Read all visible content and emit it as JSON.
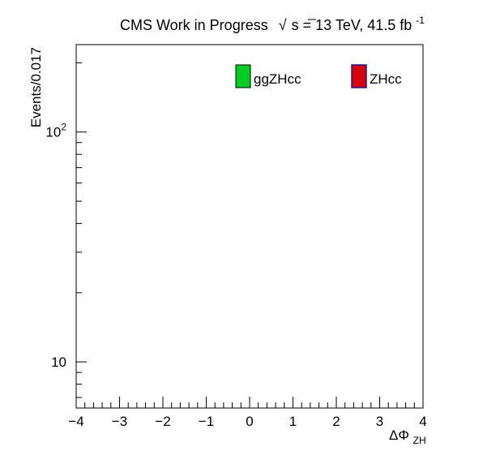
{
  "header": {
    "title_prefix": "CMS Work in Progress",
    "sqrt_symbol": "√",
    "energy_label": "s = 13 TeV, 41.5 fb",
    "lumi_exponent": "-1"
  },
  "chart_data": {
    "type": "bar",
    "title": "CMS Work in Progress √s = 13 TeV, 41.5 fb-1",
    "xlabel_main": "ΔΦ",
    "xlabel_sub": "ZH",
    "ylabel": "Events/0.017",
    "xlim": [
      -4,
      4
    ],
    "ylim": [
      6.3,
      240
    ],
    "yscale": "log",
    "grid": false,
    "legend_position": "top",
    "x_ticks": [
      {
        "value": -4,
        "label": "−4"
      },
      {
        "value": -3,
        "label": "−3"
      },
      {
        "value": -2,
        "label": "−2"
      },
      {
        "value": -1,
        "label": "−1"
      },
      {
        "value": 0,
        "label": "0"
      },
      {
        "value": 1,
        "label": "1"
      },
      {
        "value": 2,
        "label": "2"
      },
      {
        "value": 3,
        "label": "3"
      },
      {
        "value": 4,
        "label": "4"
      }
    ],
    "y_ticks": [
      {
        "value": 10,
        "base": "10",
        "exp": ""
      },
      {
        "value": 100,
        "base": "10",
        "exp": "2"
      }
    ],
    "series": [
      {
        "name": "ggZHcc",
        "color": "#00cc22",
        "values": []
      },
      {
        "name": "ZHcc",
        "color": "#d8000a",
        "values": []
      }
    ]
  }
}
